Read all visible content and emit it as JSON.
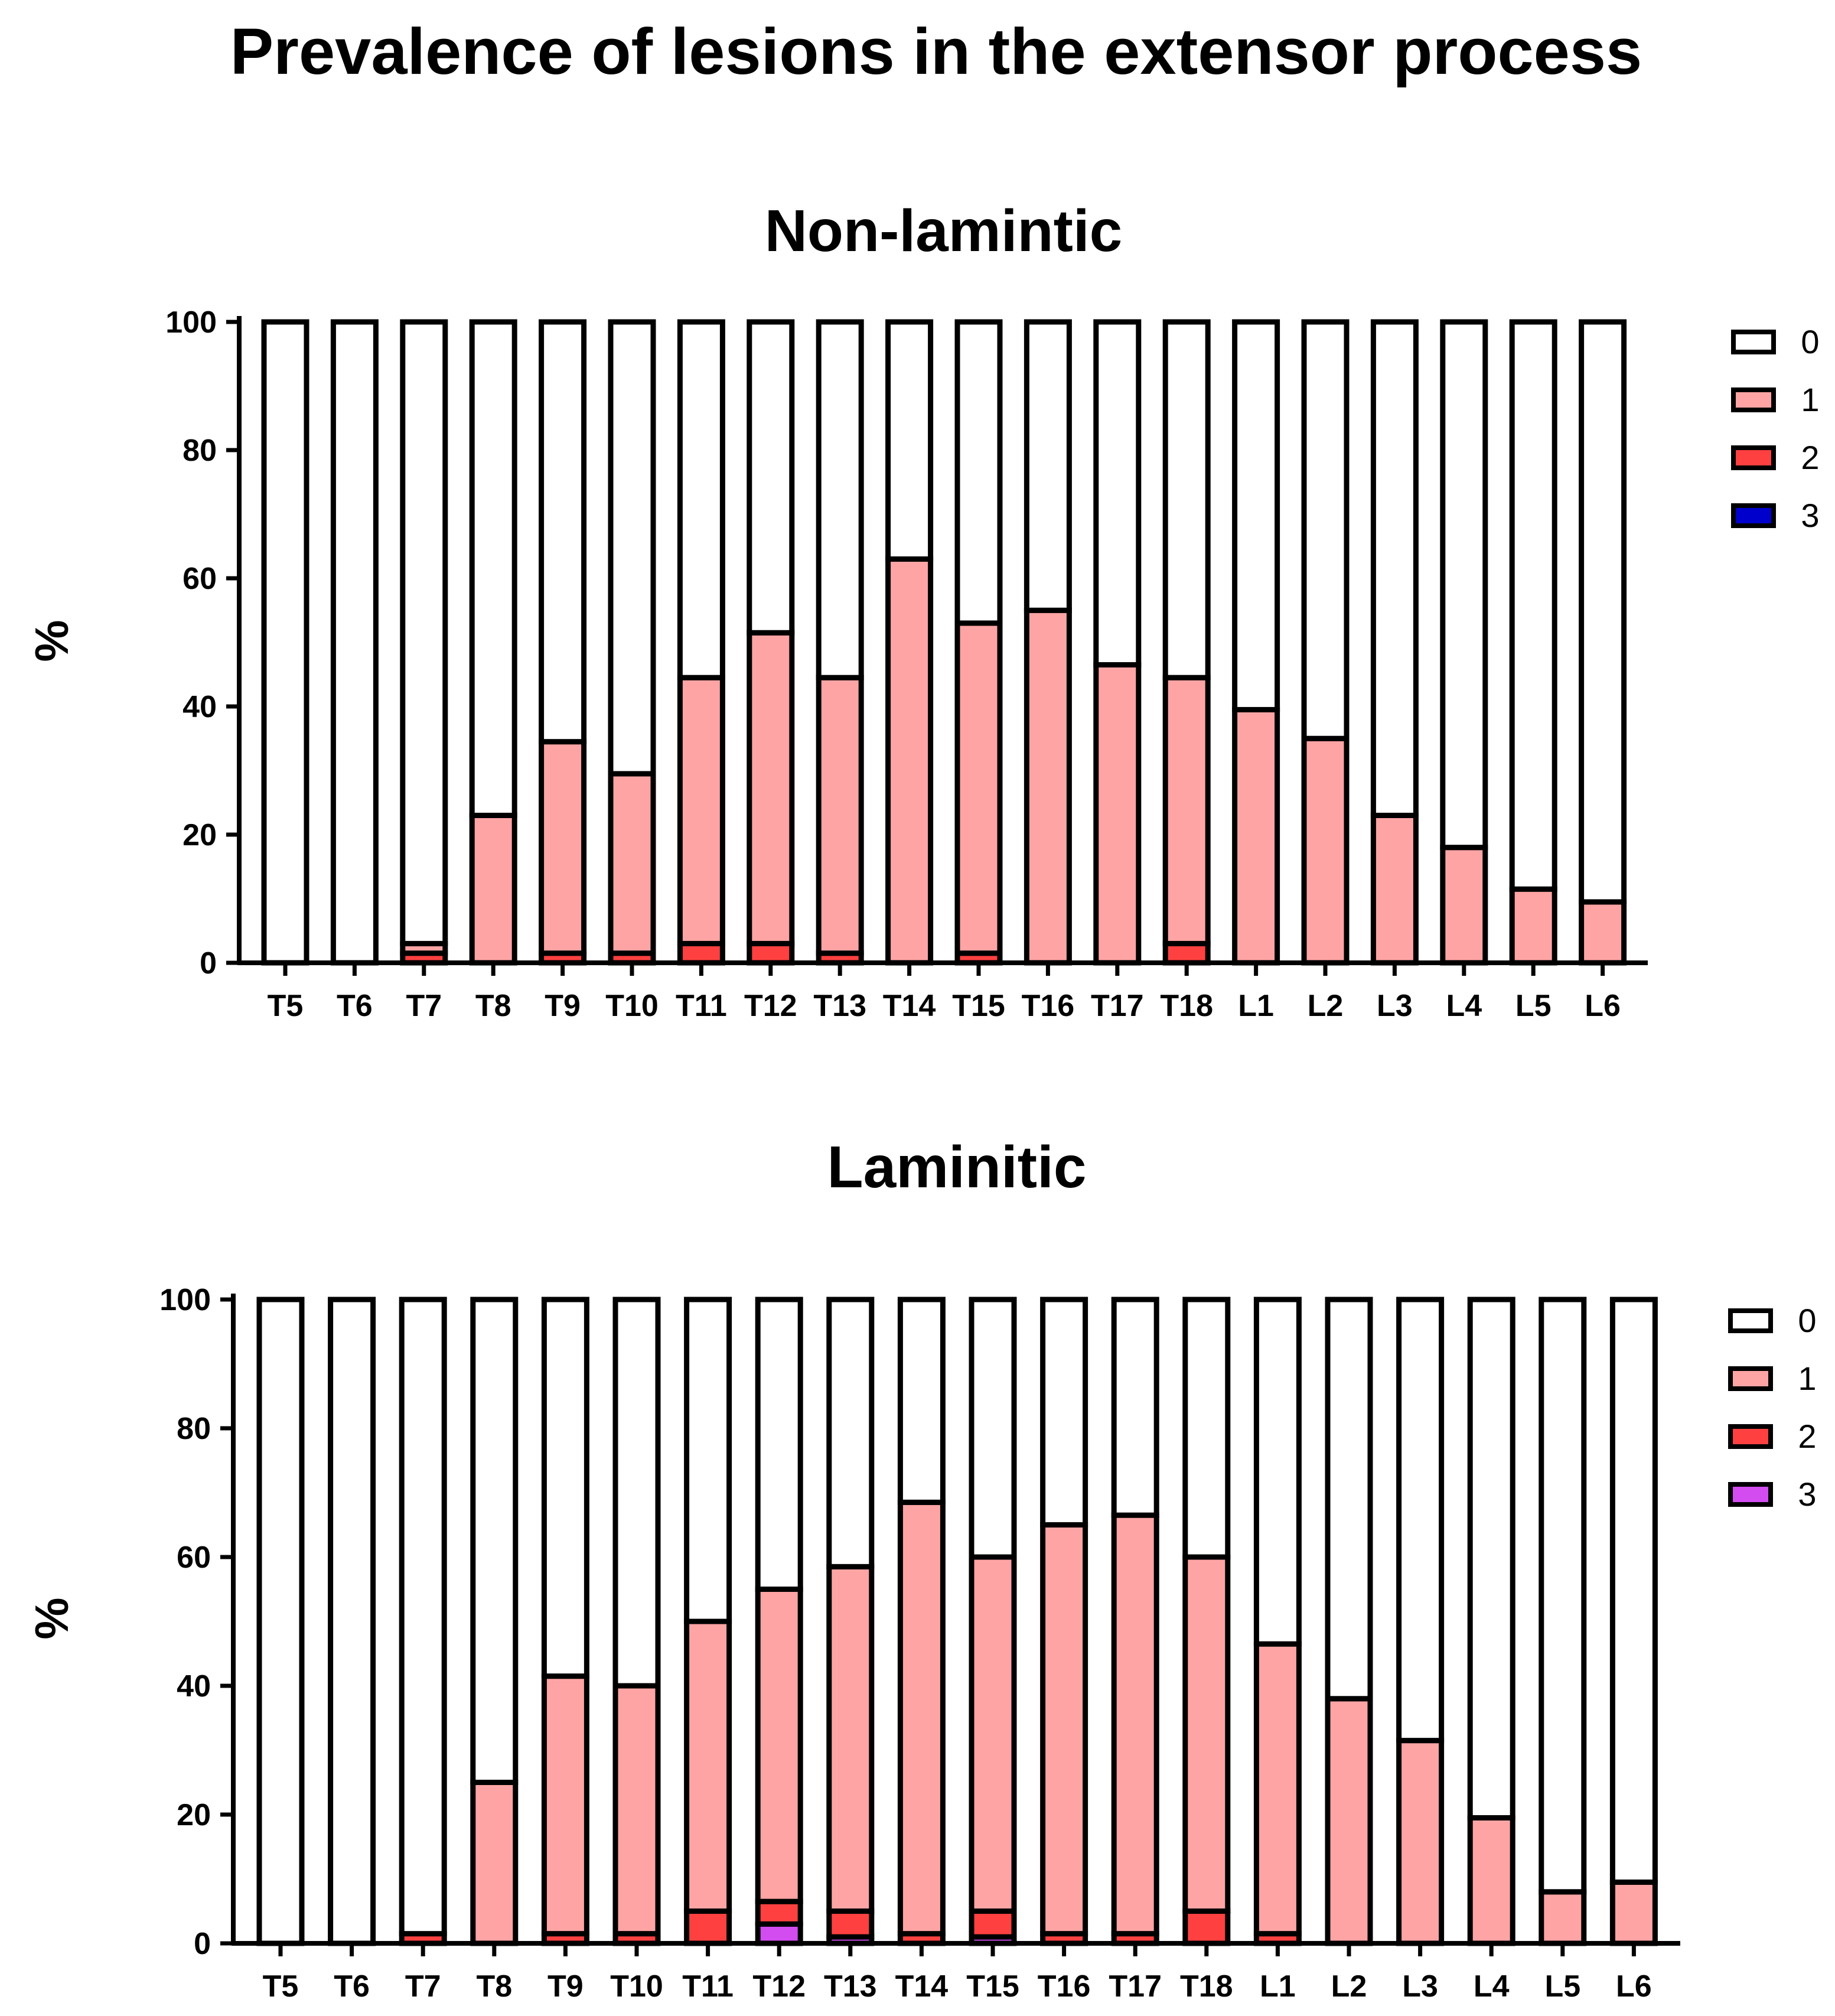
{
  "figure": {
    "title": "Prevalence of lesions in the extensor process"
  },
  "chart_data": [
    {
      "type": "bar",
      "stacked": true,
      "title": "Non-lamintic",
      "xlabel": "",
      "ylabel": "%",
      "ylim": [
        0,
        100
      ],
      "yticks": [
        0,
        20,
        40,
        60,
        80,
        100
      ],
      "legend_position": "right",
      "categories": [
        "T5",
        "T6",
        "T7",
        "T8",
        "T9",
        "T10",
        "T11",
        "T12",
        "T13",
        "T14",
        "T15",
        "T16",
        "T17",
        "T18",
        "L1",
        "L2",
        "L3",
        "L4",
        "L5",
        "L6"
      ],
      "series": [
        {
          "name": "3",
          "color": "#0000cc",
          "values": [
            0,
            0,
            0,
            0,
            0,
            0,
            0,
            0,
            0,
            0,
            0,
            0,
            0,
            0,
            0,
            0,
            0,
            0,
            0,
            0
          ]
        },
        {
          "name": "2",
          "color": "#ff4040",
          "values": [
            0,
            0,
            1.5,
            0,
            1.5,
            1.5,
            3,
            3,
            1.5,
            0,
            1.5,
            0,
            0,
            3,
            0,
            0,
            0,
            0,
            0,
            0
          ]
        },
        {
          "name": "1",
          "color": "#ffa4a4",
          "values": [
            0,
            0,
            1.5,
            23,
            33,
            28,
            41.5,
            48.5,
            43,
            63,
            51.5,
            55,
            46.5,
            41.5,
            39.5,
            35,
            23,
            18,
            11.5,
            9.5
          ]
        },
        {
          "name": "0",
          "color": "#ffffff",
          "values": [
            100,
            100,
            97,
            77,
            65.5,
            70.5,
            55.5,
            48.5,
            55.5,
            37,
            47,
            45,
            53.5,
            55.5,
            60.5,
            65,
            77,
            82,
            88.5,
            90.5
          ]
        }
      ]
    },
    {
      "type": "bar",
      "stacked": true,
      "title": "Laminitic",
      "xlabel": "",
      "ylabel": "%",
      "ylim": [
        0,
        100
      ],
      "yticks": [
        0,
        20,
        40,
        60,
        80,
        100
      ],
      "legend_position": "right",
      "categories": [
        "T5",
        "T6",
        "T7",
        "T8",
        "T9",
        "T10",
        "T11",
        "T12",
        "T13",
        "T14",
        "T15",
        "T16",
        "T17",
        "T18",
        "L1",
        "L2",
        "L3",
        "L4",
        "L5",
        "L6"
      ],
      "series": [
        {
          "name": "3",
          "color": "#d24cf0",
          "values": [
            0,
            0,
            0,
            0,
            0,
            0,
            0,
            3,
            1,
            0,
            1,
            0,
            0,
            0,
            0,
            0,
            0,
            0,
            0,
            0
          ]
        },
        {
          "name": "2",
          "color": "#ff4040",
          "values": [
            0,
            0,
            1.5,
            0,
            1.5,
            1.5,
            5,
            3.5,
            4,
            1.5,
            4,
            1.5,
            1.5,
            5,
            1.5,
            0,
            0,
            0,
            0,
            0
          ]
        },
        {
          "name": "1",
          "color": "#ffa4a4",
          "values": [
            0,
            0,
            0,
            25,
            40,
            38.5,
            45,
            48.5,
            53.5,
            67,
            55,
            63.5,
            65,
            55,
            45,
            38,
            31.5,
            19.5,
            8,
            9.5
          ]
        },
        {
          "name": "0",
          "color": "#ffffff",
          "values": [
            100,
            100,
            98.5,
            75,
            58.5,
            60,
            50,
            45,
            41.5,
            31.5,
            40,
            35,
            33.5,
            40,
            53.5,
            62,
            68.5,
            80.5,
            92,
            90.5
          ]
        }
      ]
    }
  ]
}
